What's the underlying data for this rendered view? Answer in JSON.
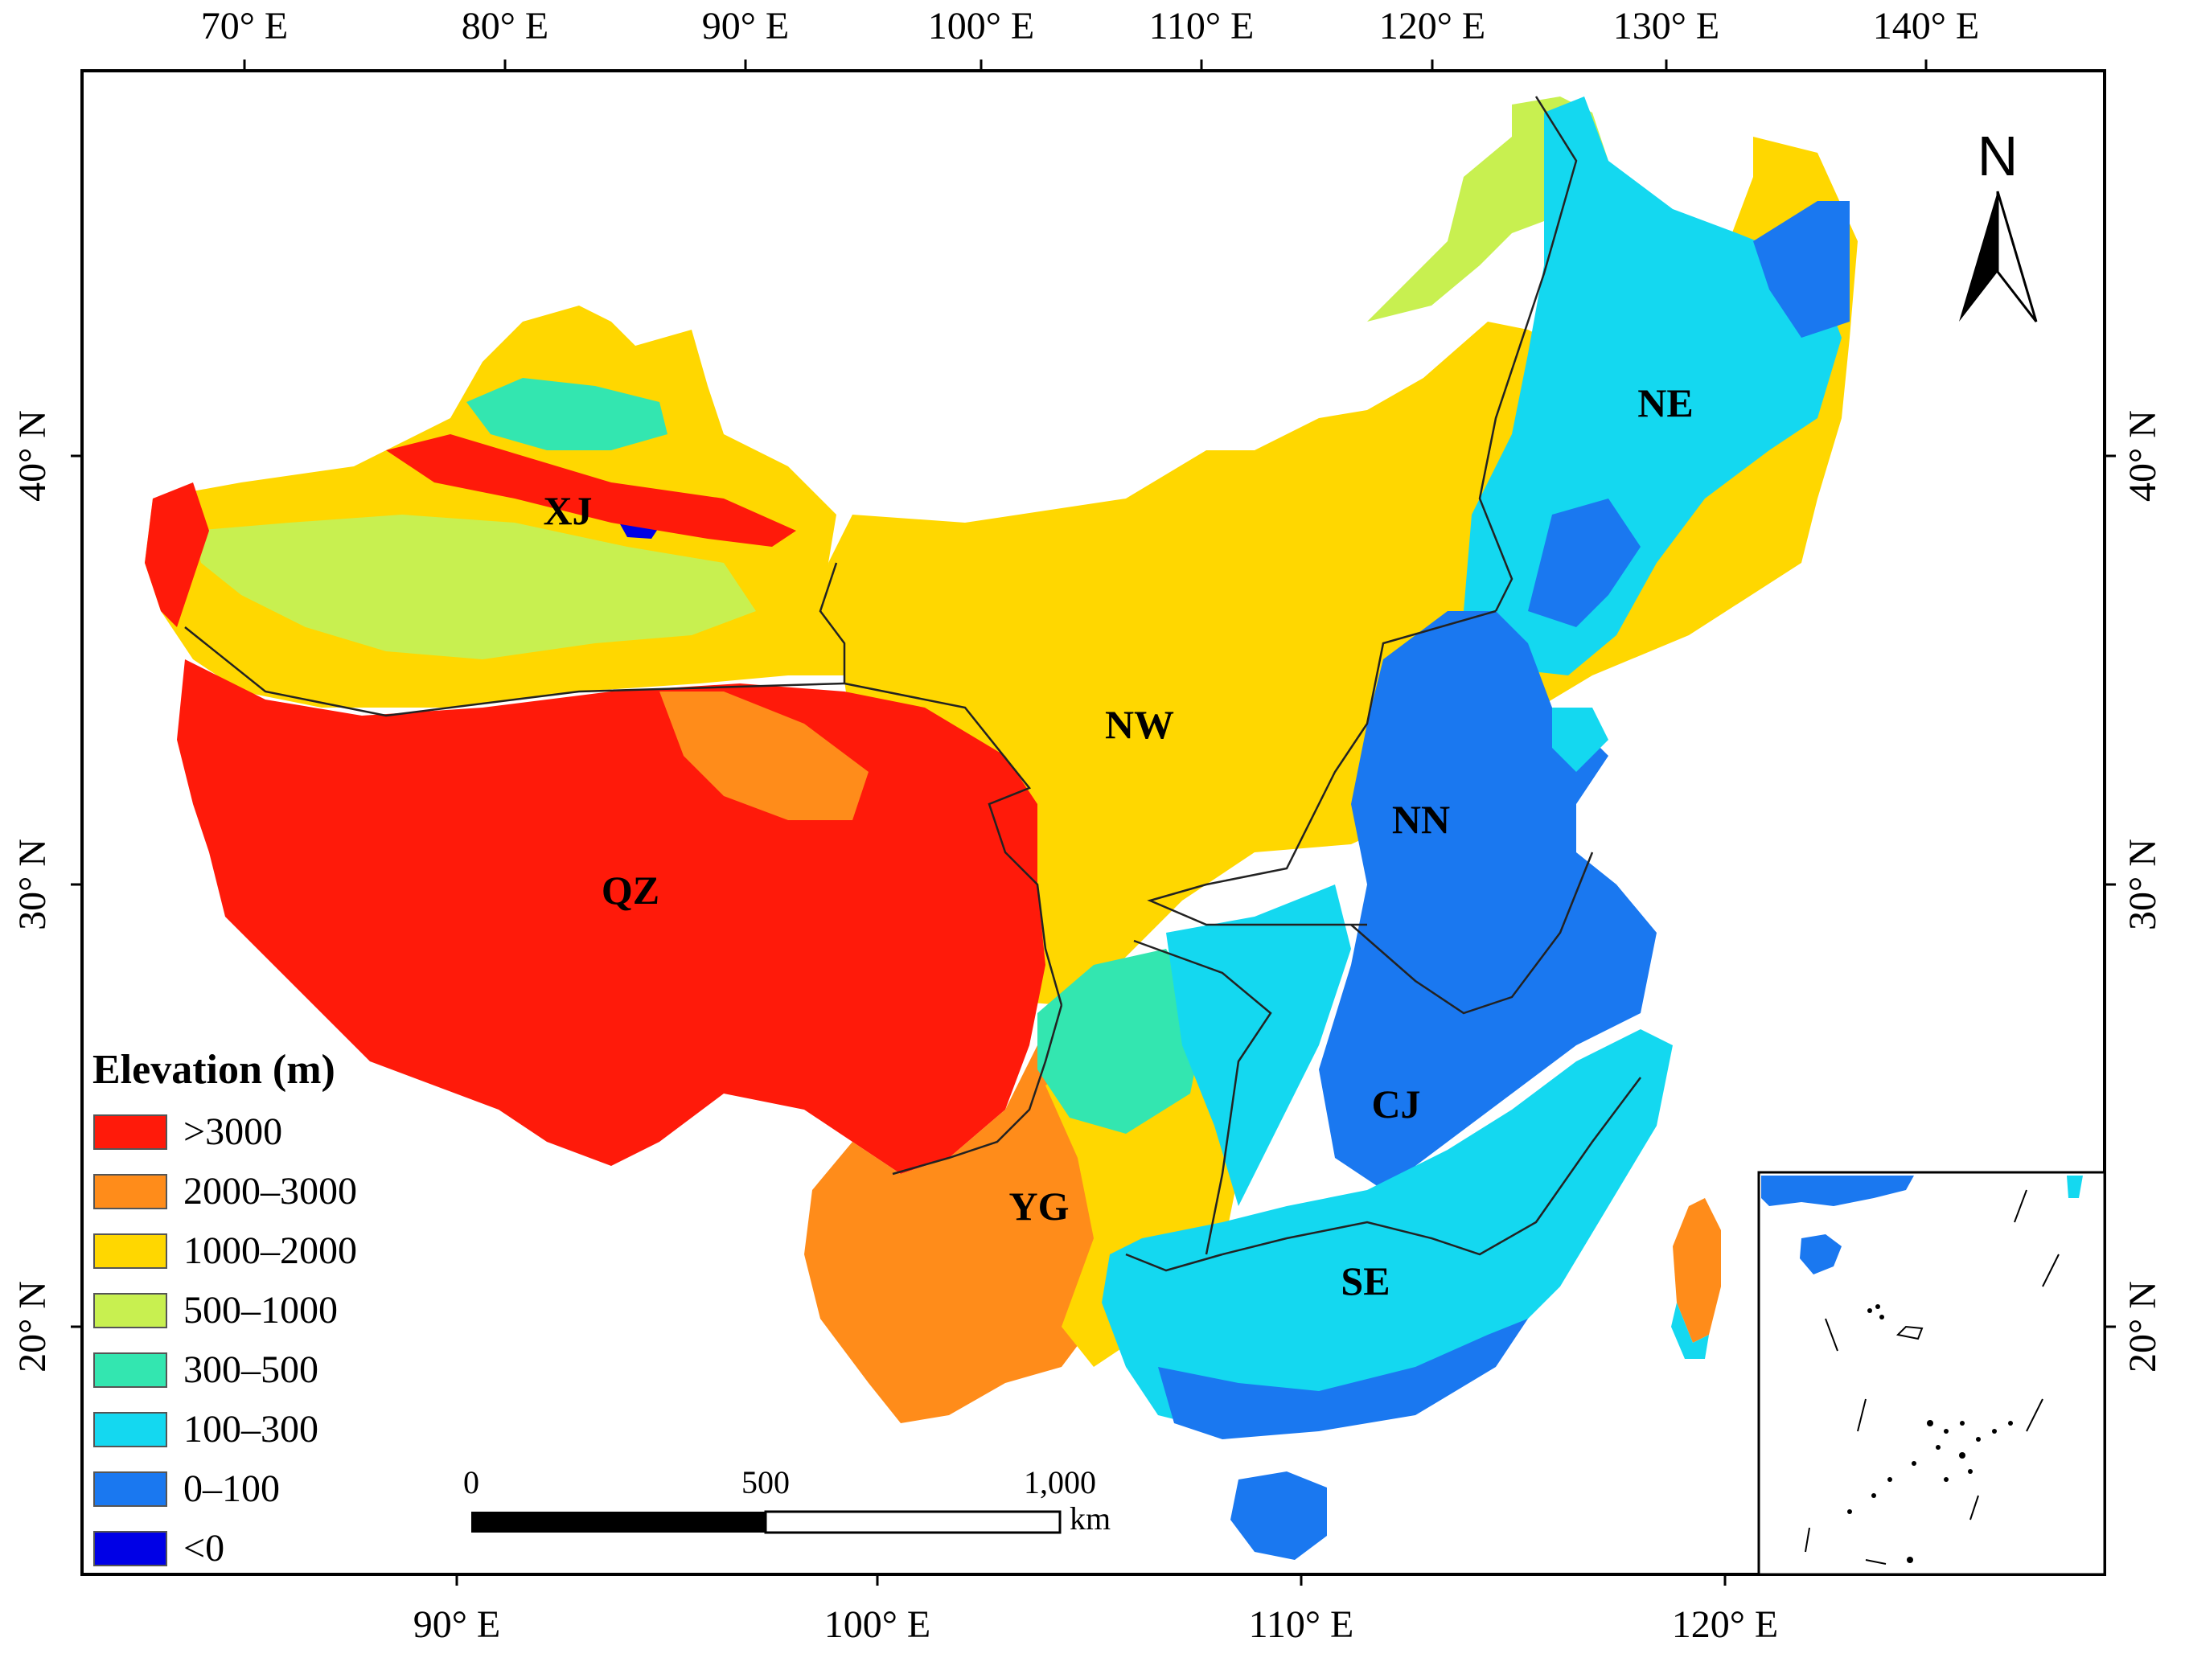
{
  "map": {
    "top_axis_labels": [
      "70° E",
      "80° E",
      "90° E",
      "100° E",
      "110° E",
      "120° E",
      "130° E",
      "140° E"
    ],
    "bottom_axis_labels": [
      "90° E",
      "100° E",
      "110° E",
      "120° E"
    ],
    "left_axis_labels": [
      "40° N",
      "30° N",
      "20° N"
    ],
    "right_axis_labels": [
      "40° N",
      "30° N",
      "20° N"
    ],
    "regions": {
      "xj": "XJ",
      "nw": "NW",
      "ne": "NE",
      "nn": "NN",
      "qz": "QZ",
      "yg": "YG",
      "cj": "CJ",
      "se": "SE"
    },
    "north_arrow": "N",
    "scale_bar": {
      "labels": [
        "0",
        "500",
        "1,000"
      ],
      "unit": "km"
    },
    "legend": {
      "title": "Elevation (m)",
      "items": [
        {
          "label": ">3000",
          "color": "#ff1a0a"
        },
        {
          "label": "2000–3000",
          "color": "#ff8c1a"
        },
        {
          "label": "1000–2000",
          "color": "#ffd700"
        },
        {
          "label": "500–1000",
          "color": "#c8f050"
        },
        {
          "label": "300–500",
          "color": "#33e6b0"
        },
        {
          "label": "100–300",
          "color": "#14d8f0"
        },
        {
          "label": "0–100",
          "color": "#1a78f0"
        },
        {
          "label": "<0",
          "color": "#0000e6"
        }
      ]
    }
  }
}
